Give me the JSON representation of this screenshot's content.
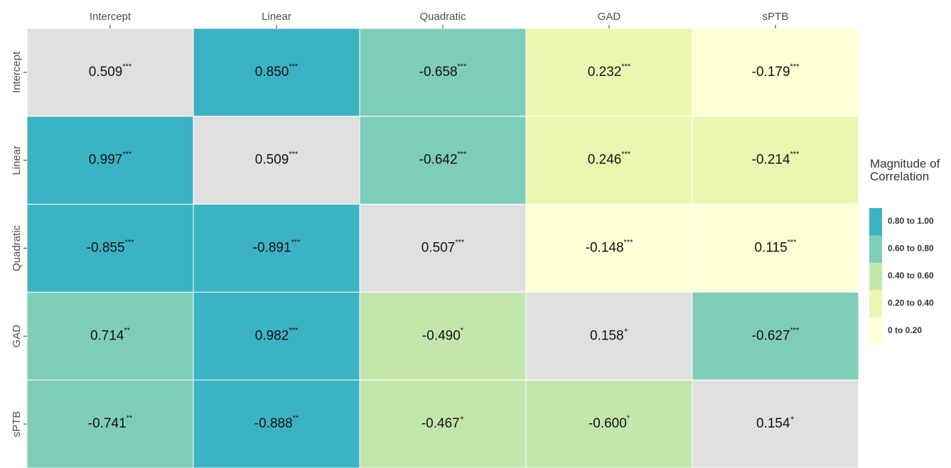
{
  "chart_data": {
    "type": "heatmap",
    "x_categories": [
      "Intercept",
      "Linear",
      "Quadratic",
      "GAD",
      "sPTB"
    ],
    "y_categories": [
      "Intercept",
      "Linear",
      "Quadratic",
      "GAD",
      "sPTB"
    ],
    "values": [
      [
        0.509,
        0.85,
        -0.658,
        0.232,
        -0.179
      ],
      [
        0.997,
        0.509,
        -0.642,
        0.246,
        -0.214
      ],
      [
        -0.855,
        -0.891,
        0.507,
        -0.148,
        0.115
      ],
      [
        0.714,
        0.982,
        -0.49,
        0.158,
        -0.627
      ],
      [
        -0.741,
        -0.888,
        -0.467,
        -0.6,
        0.154
      ]
    ],
    "value_labels": [
      [
        "0.509",
        "0.850",
        "-0.658",
        "0.232",
        "-0.179"
      ],
      [
        "0.997",
        "0.509",
        "-0.642",
        "0.246",
        "-0.214"
      ],
      [
        "-0.855",
        "-0.891",
        "0.507",
        "-0.148",
        "0.115"
      ],
      [
        "0.714",
        "0.982",
        "-0.490",
        "0.158",
        "-0.627"
      ],
      [
        "-0.741",
        "-0.888",
        "-0.467",
        "-0.600",
        "0.154"
      ]
    ],
    "significance": [
      [
        "***",
        "***",
        "***",
        "***",
        "***"
      ],
      [
        "***",
        "***",
        "***",
        "***",
        "***"
      ],
      [
        "***",
        "***",
        "***",
        "***",
        "***"
      ],
      [
        "**",
        "***",
        "*",
        "+",
        "***"
      ],
      [
        "**",
        "**",
        "+",
        "*",
        "+"
      ]
    ],
    "diagonal_color": "#e0e0e0",
    "legend_title": "Magnitude of Correlation",
    "legend": [
      {
        "name": "0.80 to 1.00",
        "color": "#3cb3c3",
        "range": [
          0.8,
          1.0
        ]
      },
      {
        "name": "0.60 to 0.80",
        "color": "#7ecdb9",
        "range": [
          0.6,
          0.8
        ]
      },
      {
        "name": "0.40 to 0.60",
        "color": "#c3e6ad",
        "range": [
          0.4,
          0.6
        ]
      },
      {
        "name": "0.20 to 0.40",
        "color": "#ebf7b1",
        "range": [
          0.2,
          0.4
        ]
      },
      {
        "name": "0 to 0.20",
        "color": "#ffffd6",
        "range": [
          0,
          0.2
        ]
      }
    ]
  }
}
